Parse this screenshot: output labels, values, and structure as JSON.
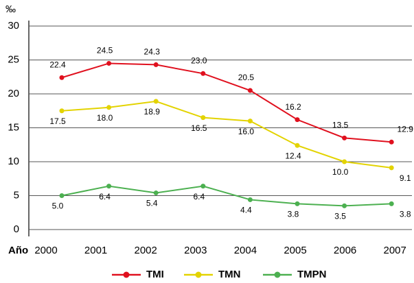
{
  "chart_data": {
    "type": "line",
    "y_label": "‰",
    "x_label": "Año",
    "categories": [
      "2000",
      "2001",
      "2002",
      "2003",
      "2004",
      "2005",
      "2006",
      "2007"
    ],
    "ylim": [
      0,
      30
    ],
    "yticks": [
      0,
      5,
      10,
      15,
      20,
      25,
      30
    ],
    "grid": true,
    "legend": "bottom",
    "series": [
      {
        "name": "TMI",
        "color": "#e0101e",
        "values": [
          22.4,
          24.5,
          24.3,
          23.0,
          20.5,
          16.2,
          13.5,
          12.9
        ],
        "value_labels": [
          "22.4",
          "24.5",
          "24.3",
          "23.0",
          "20.5",
          "16.2",
          "13.5",
          "12.9"
        ]
      },
      {
        "name": "TMN",
        "color": "#e3d300",
        "values": [
          17.5,
          18.0,
          18.9,
          16.5,
          16.0,
          12.4,
          10.0,
          9.1
        ],
        "value_labels": [
          "17.5",
          "18.0",
          "18.9",
          "16.5",
          "16.0",
          "12.4",
          "10.0",
          "9.1"
        ]
      },
      {
        "name": "TMPN",
        "color": "#4cb050",
        "values": [
          5.0,
          6.4,
          5.4,
          6.4,
          4.4,
          3.8,
          3.5,
          3.8
        ],
        "value_labels": [
          "5.0",
          "6.4",
          "5.4",
          "6.4",
          "4.4",
          "3.8",
          "3.5",
          "3.8"
        ]
      }
    ]
  }
}
